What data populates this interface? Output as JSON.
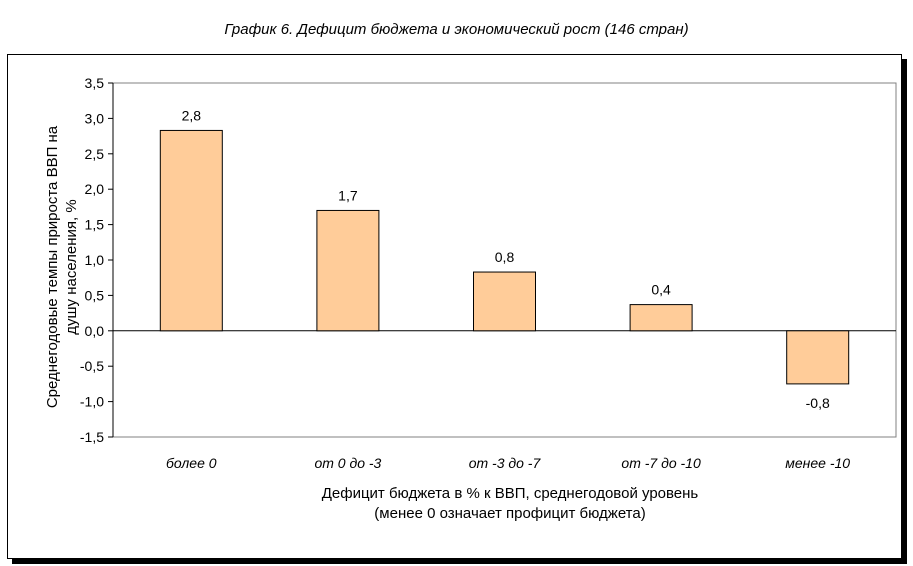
{
  "chart_data": {
    "type": "bar",
    "title": "График 6. Дефицит бюджета и экономический рост (146 стран)",
    "categories": [
      "более 0",
      "от 0 до -3",
      "от -3 до -7",
      "от -7 до -10",
      "менее -10"
    ],
    "values": [
      2.8,
      1.7,
      0.8,
      0.4,
      -0.8
    ],
    "value_labels": [
      "2,8",
      "1,7",
      "0,8",
      "0,4",
      "-0,8"
    ],
    "bar_values_exact": [
      2.83,
      1.7,
      0.83,
      0.37,
      -0.75
    ],
    "xlabel_line1": "Дефицит бюджета в % к ВВП, среднегодовой уровень",
    "xlabel_line2": "(менее 0 означает профицит бюджета)",
    "ylabel_line1": "Среднегодовые темпы прироста ВВП на",
    "ylabel_line2": "душу населения, %",
    "ylim": [
      -1.5,
      3.5
    ],
    "yticks": [
      3.5,
      3.0,
      2.5,
      2.0,
      1.5,
      1.0,
      0.5,
      0.0,
      -0.5,
      -1.0,
      -1.5
    ],
    "ytick_labels": [
      "3,5",
      "3,0",
      "2,5",
      "2,0",
      "1,5",
      "1,0",
      "0,5",
      "0,0",
      "-0,5",
      "-1,0",
      "-1,5"
    ],
    "bar_color": "#FFCC99",
    "grid": false,
    "legend": "none"
  }
}
